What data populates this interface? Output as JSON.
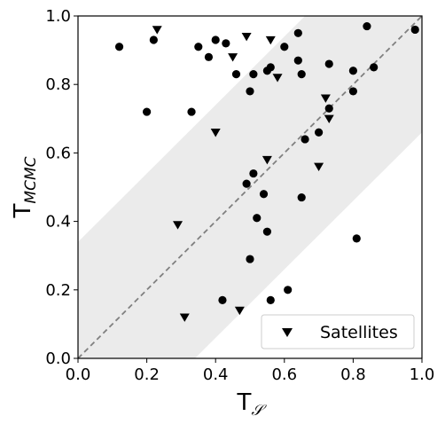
{
  "chart_data": {
    "type": "scatter",
    "xlim": [
      0.0,
      1.0
    ],
    "ylim": [
      0.0,
      1.0
    ],
    "x_ticks": [
      "0.0",
      "0.2",
      "0.4",
      "0.6",
      "0.8",
      "1.0"
    ],
    "y_ticks": [
      "0.0",
      "0.2",
      "0.4",
      "0.6",
      "0.8",
      "1.0"
    ],
    "xlabel": {
      "main": "T",
      "sub": "𝒮"
    },
    "ylabel": {
      "main": "T",
      "sub": "MCMC"
    },
    "grid": false,
    "legend": {
      "position": "bottom-right",
      "entries": [
        "Satellites"
      ]
    },
    "reference_line": {
      "slope": 1,
      "intercept": 0,
      "style": "dashed",
      "color": "#808080"
    },
    "band": {
      "half_width": 0.34,
      "color": "#ebebeb"
    },
    "series": [
      {
        "marker": "circle",
        "color": "#000000",
        "points": [
          [
            0.12,
            0.91
          ],
          [
            0.2,
            0.72
          ],
          [
            0.22,
            0.93
          ],
          [
            0.33,
            0.72
          ],
          [
            0.35,
            0.91
          ],
          [
            0.38,
            0.88
          ],
          [
            0.4,
            0.93
          ],
          [
            0.43,
            0.92
          ],
          [
            0.46,
            0.83
          ],
          [
            0.49,
            0.51
          ],
          [
            0.5,
            0.78
          ],
          [
            0.5,
            0.29
          ],
          [
            0.51,
            0.83
          ],
          [
            0.51,
            0.54
          ],
          [
            0.52,
            0.41
          ],
          [
            0.54,
            0.48
          ],
          [
            0.55,
            0.84
          ],
          [
            0.55,
            0.37
          ],
          [
            0.56,
            0.85
          ],
          [
            0.56,
            0.17
          ],
          [
            0.6,
            0.91
          ],
          [
            0.61,
            0.2
          ],
          [
            0.64,
            0.95
          ],
          [
            0.64,
            0.87
          ],
          [
            0.65,
            0.83
          ],
          [
            0.65,
            0.47
          ],
          [
            0.66,
            0.64
          ],
          [
            0.7,
            0.66
          ],
          [
            0.73,
            0.86
          ],
          [
            0.73,
            0.73
          ],
          [
            0.8,
            0.84
          ],
          [
            0.8,
            0.78
          ],
          [
            0.81,
            0.35
          ],
          [
            0.84,
            0.97
          ],
          [
            0.86,
            0.85
          ],
          [
            0.98,
            0.96
          ],
          [
            0.42,
            0.17
          ]
        ]
      },
      {
        "name": "Satellites",
        "marker": "triangle-down",
        "color": "#000000",
        "points": [
          [
            0.23,
            0.96
          ],
          [
            0.29,
            0.39
          ],
          [
            0.31,
            0.12
          ],
          [
            0.4,
            0.66
          ],
          [
            0.45,
            0.88
          ],
          [
            0.47,
            0.14
          ],
          [
            0.49,
            0.94
          ],
          [
            0.55,
            0.58
          ],
          [
            0.56,
            0.93
          ],
          [
            0.58,
            0.82
          ],
          [
            0.7,
            0.56
          ],
          [
            0.72,
            0.76
          ],
          [
            0.73,
            0.7
          ]
        ]
      }
    ]
  }
}
